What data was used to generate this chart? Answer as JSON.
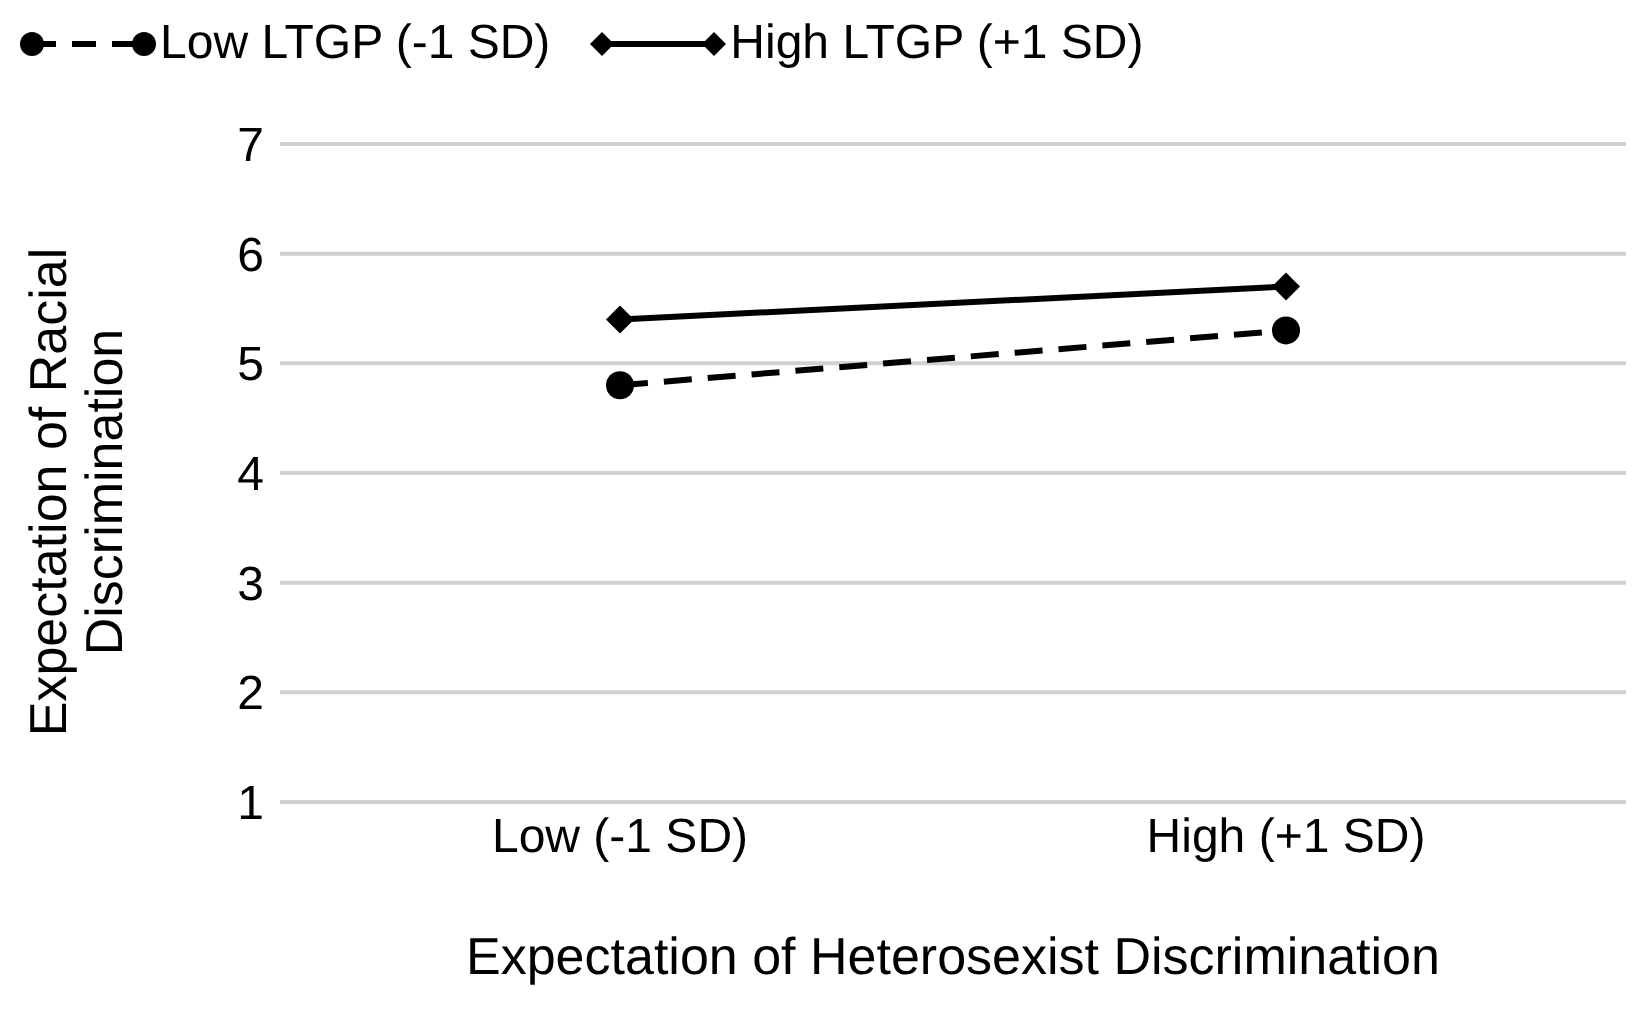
{
  "chart_data": {
    "type": "line",
    "xlabel": "Expectation of Heterosexist Discrimination",
    "ylabel": "Expectation of Racial Discrimination",
    "categories": [
      "Low (-1 SD)",
      "High (+1 SD)"
    ],
    "series": [
      {
        "name": "Low LTGP (-1 SD)",
        "color": "#000000",
        "values": [
          4.8,
          5.3
        ],
        "marker": "circle",
        "line_style": "dashed"
      },
      {
        "name": "High LTGP (+1 SD)",
        "color": "#000000",
        "values": [
          5.4,
          5.7
        ],
        "marker": "diamond",
        "line_style": "solid"
      }
    ],
    "ylim": [
      1,
      7
    ],
    "yticks": [
      1,
      2,
      3,
      4,
      5,
      6,
      7
    ],
    "grid": "y",
    "legend": "top left"
  }
}
